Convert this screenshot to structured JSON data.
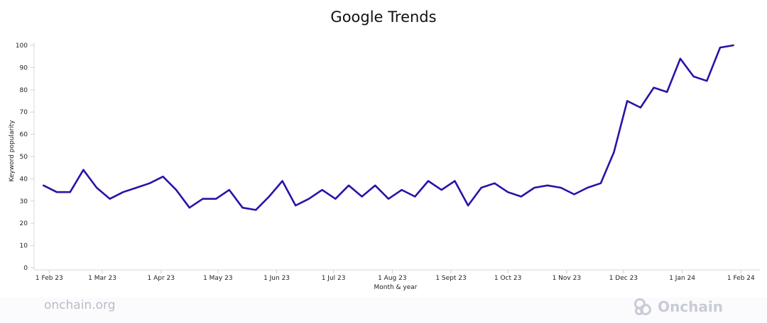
{
  "chart_data": {
    "type": "line",
    "title": "Google Trends",
    "xlabel": "Month & year",
    "ylabel": "Keyword popularity",
    "ylim": [
      0,
      100
    ],
    "yticks": [
      0,
      10,
      20,
      30,
      40,
      50,
      60,
      70,
      80,
      90,
      100
    ],
    "grid": false,
    "line_color": "#2a12a8",
    "xlim": [
      "2023-01-24",
      "2024-02-11"
    ],
    "xticks": [
      {
        "label": "1 Feb 23",
        "date": "2023-02-01"
      },
      {
        "label": "1 Mar 23",
        "date": "2023-03-01"
      },
      {
        "label": "1 Apr 23",
        "date": "2023-04-01"
      },
      {
        "label": "1 May 23",
        "date": "2023-05-01"
      },
      {
        "label": "1 Jun 23",
        "date": "2023-06-01"
      },
      {
        "label": "1 Jul 23",
        "date": "2023-07-01"
      },
      {
        "label": "1 Aug 23",
        "date": "2023-08-01"
      },
      {
        "label": "1 Sept 23",
        "date": "2023-09-01"
      },
      {
        "label": "1 Oct 23",
        "date": "2023-10-01"
      },
      {
        "label": "1 Nov 23",
        "date": "2023-11-01"
      },
      {
        "label": "1 Dec 23",
        "date": "2023-12-01"
      },
      {
        "label": "1 Jan 24",
        "date": "2024-01-01"
      },
      {
        "label": "1 Feb 24",
        "date": "2024-02-01"
      }
    ],
    "series": [
      {
        "x": [
          "2023-01-29",
          "2023-02-05",
          "2023-02-12",
          "2023-02-19",
          "2023-02-26",
          "2023-03-05",
          "2023-03-12",
          "2023-03-19",
          "2023-03-26",
          "2023-04-02",
          "2023-04-09",
          "2023-04-16",
          "2023-04-23",
          "2023-04-30",
          "2023-05-07",
          "2023-05-14",
          "2023-05-21",
          "2023-05-28",
          "2023-06-04",
          "2023-06-11",
          "2023-06-18",
          "2023-06-25",
          "2023-07-02",
          "2023-07-09",
          "2023-07-16",
          "2023-07-23",
          "2023-07-30",
          "2023-08-06",
          "2023-08-13",
          "2023-08-20",
          "2023-08-27",
          "2023-09-03",
          "2023-09-10",
          "2023-09-17",
          "2023-09-24",
          "2023-10-01",
          "2023-10-08",
          "2023-10-15",
          "2023-10-22",
          "2023-10-29",
          "2023-11-05",
          "2023-11-12",
          "2023-11-19",
          "2023-11-26",
          "2023-12-03",
          "2023-12-10",
          "2023-12-17",
          "2023-12-24",
          "2023-12-31",
          "2024-01-07",
          "2024-01-14",
          "2024-01-21",
          "2024-01-28"
        ],
        "values": [
          37,
          34,
          34,
          44,
          36,
          31,
          34,
          36,
          38,
          41,
          35,
          27,
          31,
          31,
          35,
          27,
          26,
          32,
          39,
          28,
          31,
          35,
          31,
          37,
          32,
          37,
          31,
          35,
          32,
          39,
          35,
          39,
          28,
          36,
          38,
          34,
          32,
          36,
          37,
          36,
          33,
          36,
          38,
          52,
          75,
          72,
          81,
          79,
          94,
          86,
          84,
          99,
          100
        ]
      }
    ]
  },
  "footer": {
    "source": "onchain.org",
    "logo_text": "Onchain",
    "logo_icon": "onchain-logo-icon"
  }
}
